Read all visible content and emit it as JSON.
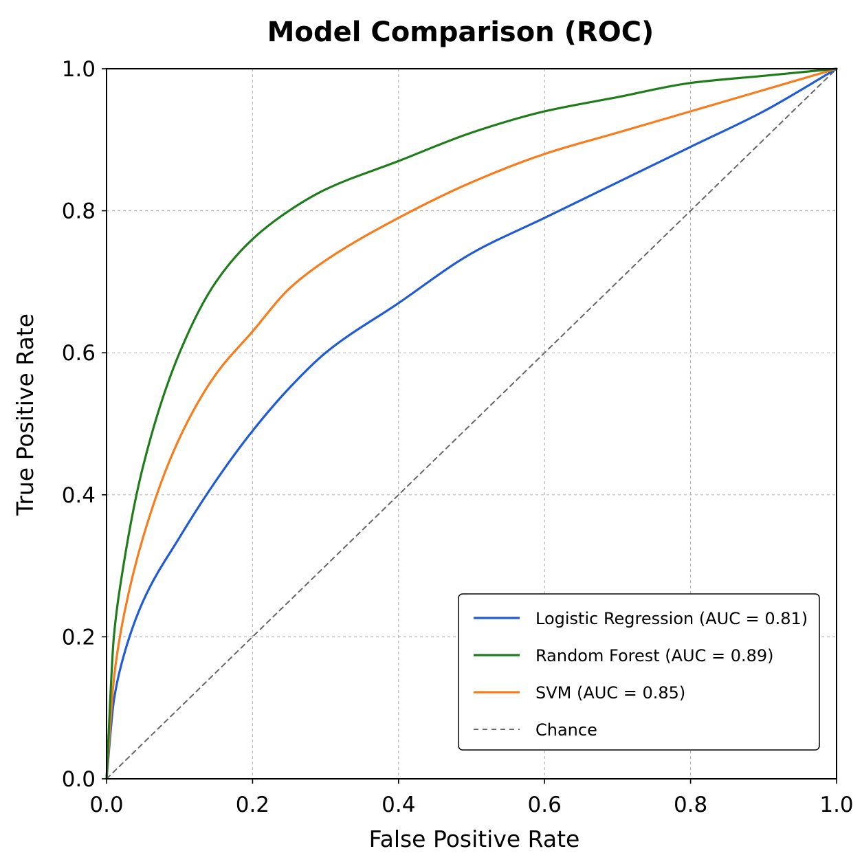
{
  "chart_data": {
    "type": "line",
    "title": "Model Comparison (ROC)",
    "xlabel": "False Positive Rate",
    "ylabel": "True Positive Rate",
    "xlim": [
      0.0,
      1.0
    ],
    "ylim": [
      0.0,
      1.0
    ],
    "x_ticks": [
      "0.0",
      "0.2",
      "0.4",
      "0.6",
      "0.8",
      "1.0"
    ],
    "y_ticks": [
      "0.0",
      "0.2",
      "0.4",
      "0.6",
      "0.8",
      "1.0"
    ],
    "grid": true,
    "legend_position": "lower-right",
    "x": [
      0.0,
      0.01,
      0.02,
      0.05,
      0.1,
      0.15,
      0.2,
      0.25,
      0.3,
      0.4,
      0.5,
      0.6,
      0.7,
      0.8,
      0.9,
      1.0
    ],
    "series": [
      {
        "name": "Logistic Regression (AUC = 0.81)",
        "color": "#1f5bd6",
        "line_style": "solid",
        "values": [
          0.0,
          0.11,
          0.16,
          0.25,
          0.34,
          0.42,
          0.49,
          0.55,
          0.6,
          0.67,
          0.74,
          0.79,
          0.84,
          0.89,
          0.94,
          1.0
        ]
      },
      {
        "name": "Random Forest (AUC = 0.89)",
        "color": "#1e7d1a",
        "line_style": "solid",
        "values": [
          0.0,
          0.2,
          0.28,
          0.44,
          0.6,
          0.7,
          0.76,
          0.8,
          0.83,
          0.87,
          0.91,
          0.94,
          0.96,
          0.98,
          0.99,
          1.0
        ]
      },
      {
        "name": "SVM (AUC = 0.85)",
        "color": "#f97c1c",
        "line_style": "solid",
        "values": [
          0.0,
          0.14,
          0.21,
          0.34,
          0.48,
          0.57,
          0.63,
          0.69,
          0.73,
          0.79,
          0.84,
          0.88,
          0.91,
          0.94,
          0.97,
          1.0
        ]
      },
      {
        "name": "Chance",
        "color": "#666666",
        "line_style": "dashed",
        "values": [
          0.0,
          0.01,
          0.02,
          0.05,
          0.1,
          0.15,
          0.2,
          0.25,
          0.3,
          0.4,
          0.5,
          0.6,
          0.7,
          0.8,
          0.9,
          1.0
        ]
      }
    ]
  }
}
